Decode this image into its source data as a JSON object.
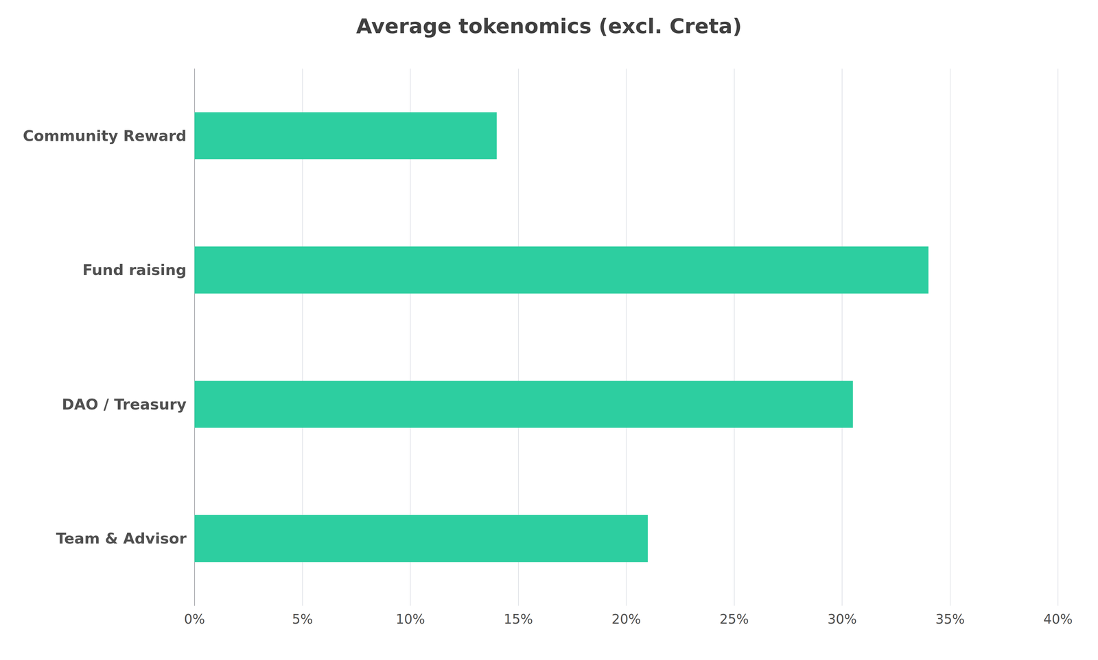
{
  "chart_data": {
    "type": "bar",
    "orientation": "horizontal",
    "title": "Average tokenomics (excl. Creta)",
    "categories": [
      "Team & Advisor",
      "DAO / Treasury",
      "Fund raising",
      "Community Reward"
    ],
    "values": [
      0.21,
      0.305,
      0.34,
      0.14
    ],
    "color": "#2dcea0",
    "xlim": [
      0,
      0.4
    ],
    "xticks": [
      {
        "value": 0,
        "label": "0%"
      },
      {
        "value": 0.05,
        "label": "5%"
      },
      {
        "value": 0.1,
        "label": "10%"
      },
      {
        "value": 0.15,
        "label": "15%"
      },
      {
        "value": 0.2,
        "label": "20%"
      },
      {
        "value": 0.25,
        "label": "25%"
      },
      {
        "value": 0.3,
        "label": "30%"
      },
      {
        "value": 0.35,
        "label": "35%"
      },
      {
        "value": 0.4,
        "label": "40%"
      }
    ],
    "grid": true
  }
}
